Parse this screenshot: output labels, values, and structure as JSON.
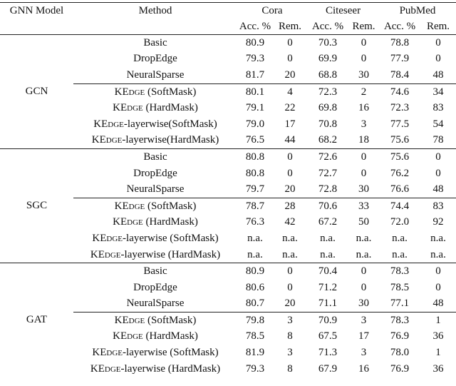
{
  "header": {
    "model": "GNN Model",
    "method": "Method",
    "datasets": [
      "Cora",
      "Citeseer",
      "PubMed"
    ],
    "metrics": [
      "Acc. %",
      "Rem.",
      "Acc. %",
      "Rem.",
      "Acc. %",
      "Rem."
    ]
  },
  "groups": [
    {
      "model": "GCN",
      "rows": [
        {
          "method": "Basic",
          "cells": [
            "80.9",
            "0",
            "70.3",
            "0",
            "78.8",
            "0"
          ]
        },
        {
          "method": "DropEdge",
          "cells": [
            "79.3",
            "0",
            "69.9",
            "0",
            "77.9",
            "0"
          ]
        },
        {
          "method": "NeuralSparse",
          "cells": [
            "81.7",
            "20",
            "68.8",
            "30",
            "78.4",
            "48"
          ]
        },
        {
          "method": [
            "KEdge",
            " (SoftMask)"
          ],
          "cells": [
            "80.1",
            "4",
            "72.3",
            "2",
            "74.6",
            "34"
          ]
        },
        {
          "method": [
            "KEdge",
            " (HardMask)"
          ],
          "cells": [
            "79.1",
            "22",
            "69.8",
            "16",
            "72.3",
            "83"
          ]
        },
        {
          "method": [
            "KEdge",
            "-layerwise(SoftMask)"
          ],
          "cells": [
            "79.0",
            "17",
            "70.8",
            "3",
            "77.5",
            "54"
          ]
        },
        {
          "method": [
            "KEdge",
            "-layerwise(HardMask)"
          ],
          "cells": [
            "76.5",
            "44",
            "68.2",
            "18",
            "75.6",
            "78"
          ]
        }
      ]
    },
    {
      "model": "SGC",
      "rows": [
        {
          "method": "Basic",
          "cells": [
            "80.8",
            "0",
            "72.6",
            "0",
            "75.6",
            "0"
          ]
        },
        {
          "method": "DropEdge",
          "cells": [
            "80.8",
            "0",
            "72.7",
            "0",
            "76.2",
            "0"
          ]
        },
        {
          "method": "NeuralSparse",
          "cells": [
            "79.7",
            "20",
            "72.8",
            "30",
            "76.6",
            "48"
          ]
        },
        {
          "method": [
            "KEdge",
            " (SoftMask)"
          ],
          "cells": [
            "78.7",
            "28",
            "70.6",
            "33",
            "74.4",
            "83"
          ]
        },
        {
          "method": [
            "KEdge",
            " (HardMask)"
          ],
          "cells": [
            "76.3",
            "42",
            "67.2",
            "50",
            "72.0",
            "92"
          ]
        },
        {
          "method": [
            "KEdge",
            "-layerwise (SoftMask)"
          ],
          "cells": [
            "n.a.",
            "n.a.",
            "n.a.",
            "n.a.",
            "n.a.",
            "n.a."
          ]
        },
        {
          "method": [
            "KEdge",
            "-layerwise (HardMask)"
          ],
          "cells": [
            "n.a.",
            "n.a.",
            "n.a.",
            "n.a.",
            "n.a.",
            "n.a."
          ]
        }
      ]
    },
    {
      "model": "GAT",
      "rows": [
        {
          "method": "Basic",
          "cells": [
            "80.9",
            "0",
            "70.4",
            "0",
            "78.3",
            "0"
          ]
        },
        {
          "method": "DropEdge",
          "cells": [
            "80.6",
            "0",
            "71.2",
            "0",
            "78.5",
            "0"
          ]
        },
        {
          "method": "NeuralSparse",
          "cells": [
            "80.7",
            "20",
            "71.1",
            "30",
            "77.1",
            "48"
          ]
        },
        {
          "method": [
            "KEdge",
            " (SoftMask)"
          ],
          "cells": [
            "79.8",
            "3",
            "70.9",
            "3",
            "78.3",
            "1"
          ]
        },
        {
          "method": [
            "KEdge",
            " (HardMask)"
          ],
          "cells": [
            "78.5",
            "8",
            "67.5",
            "17",
            "76.9",
            "36"
          ]
        },
        {
          "method": [
            "KEdge",
            "-layerwise (SoftMask)"
          ],
          "cells": [
            "81.9",
            "3",
            "71.3",
            "3",
            "78.0",
            "1"
          ]
        },
        {
          "method": [
            "KEdge",
            "-layerwise (HardMask)"
          ],
          "cells": [
            "79.3",
            "8",
            "67.9",
            "16",
            "76.9",
            "36"
          ]
        }
      ]
    }
  ]
}
